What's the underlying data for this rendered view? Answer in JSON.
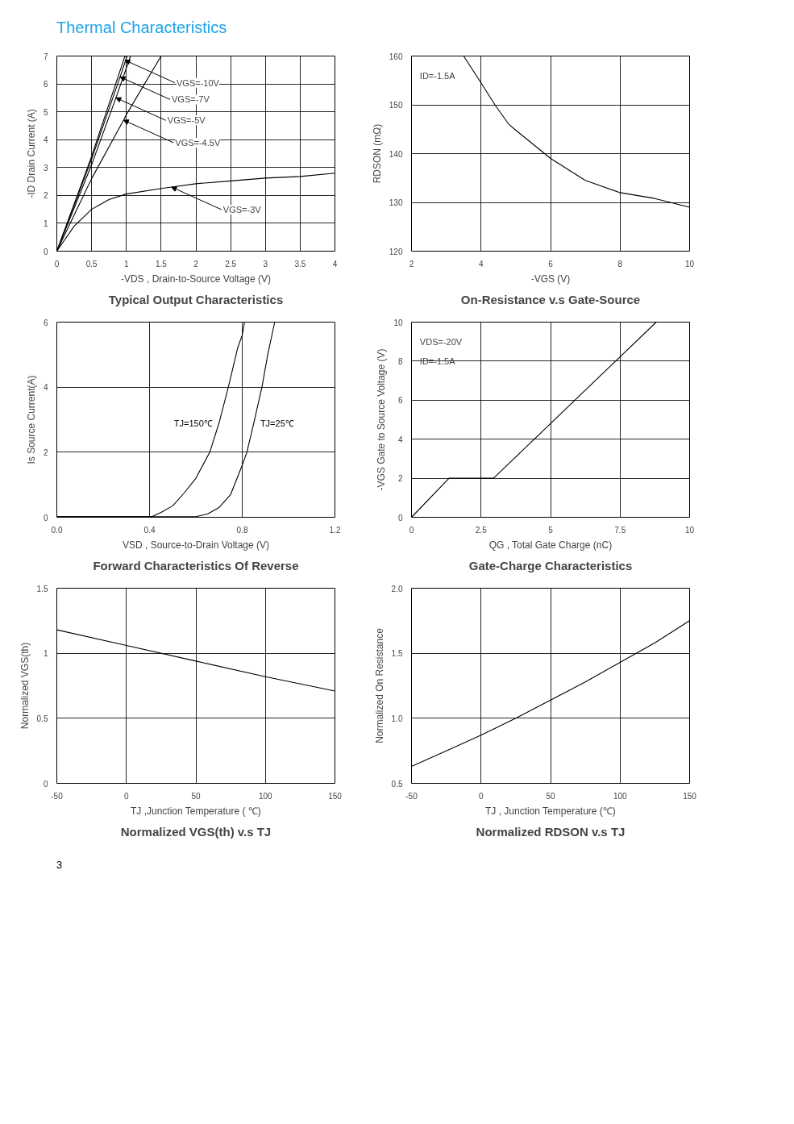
{
  "chart_data": [
    {
      "type": "line",
      "title": "Typical Output Characteristics",
      "xlabel": "-VDS , Drain-to-Source Voltage (V)",
      "ylabel": "-ID Drain Current (A)",
      "xlim": [
        0,
        4
      ],
      "ylim": [
        0,
        7
      ],
      "xticks": [
        0,
        0.5,
        1,
        1.5,
        2,
        2.5,
        3,
        3.5,
        4
      ],
      "yticks": [
        0,
        1,
        2,
        3,
        4,
        5,
        6,
        7
      ],
      "grid": true,
      "marker": "none",
      "legend": false,
      "series": [
        {
          "color": "#000000",
          "x": [
            0,
            0.5,
            0.96,
            0.98
          ],
          "values": [
            0,
            3.4,
            6.85,
            7
          ]
        },
        {
          "color": "#000000",
          "x": [
            0,
            0.5,
            0.91,
            1.01
          ],
          "values": [
            0,
            3.3,
            6.25,
            7
          ]
        },
        {
          "color": "#000000",
          "x": [
            0,
            0.5,
            0.85,
            1.06
          ],
          "values": [
            0,
            3.1,
            5.5,
            7
          ]
        },
        {
          "color": "#000000",
          "x": [
            0,
            0.5,
            0.96,
            1,
            1.5
          ],
          "values": [
            0,
            2.6,
            4.7,
            4.9,
            7
          ]
        },
        {
          "color": "#000000",
          "x": [
            0,
            0.25,
            0.5,
            0.75,
            1,
            1.5,
            1.65,
            2,
            2.5,
            3,
            3.5,
            4
          ],
          "values": [
            0,
            0.9,
            1.5,
            1.85,
            2.05,
            2.25,
            2.3,
            2.42,
            2.52,
            2.62,
            2.68,
            2.8
          ]
        }
      ],
      "annotations": [
        "Thermal Characteristics",
        {
          "text": "VGS=-10V",
          "x": 0.98,
          "y": 6.85
        },
        {
          "text": "VGS=-7V",
          "x": 0.91,
          "y": 6.25
        },
        {
          "text": "VGS=-5V",
          "x": 0.85,
          "y": 5.5
        },
        {
          "text": "VGS=-4.5V",
          "x": 0.96,
          "y": 4.7
        },
        {
          "text": "VGS=-3V",
          "x": 1.65,
          "y": 2.3
        }
      ]
    },
    {
      "type": "line",
      "title": "On-Resistance v.s Gate-Source",
      "xlabel": "-VGS (V)",
      "ylabel": "RDSON (mΩ)",
      "xlim": [
        2,
        10
      ],
      "ylim": [
        120,
        160
      ],
      "xticks": [
        2,
        4,
        6,
        8,
        10
      ],
      "yticks": [
        120,
        130,
        140,
        150,
        160
      ],
      "grid": true,
      "marker": "none",
      "legend": false,
      "series": [
        {
          "color": "#000000",
          "x": [
            3.5,
            4,
            4.4,
            4.8,
            5,
            6,
            7,
            8,
            9,
            10
          ],
          "values": [
            160,
            154.5,
            150,
            146,
            144.8,
            139,
            134.5,
            132,
            130.8,
            129
          ]
        }
      ],
      "annotations": [
        "ID=-1.5A"
      ]
    },
    {
      "type": "line",
      "title": "Forward Characteristics Of Reverse",
      "xlabel": "VSD , Source-to-Drain Voltage (V)",
      "ylabel": "Is Source Current(A)",
      "xlim": [
        0,
        1.2
      ],
      "ylim": [
        0,
        6
      ],
      "xticks": [
        {
          "value": 0,
          "label": "0.0"
        },
        0.4,
        0.8,
        1.2
      ],
      "yticks": [
        0,
        2,
        4,
        6
      ],
      "grid": true,
      "marker": "none",
      "legend": false,
      "series": [
        {
          "name": "TJ=150℃",
          "color": "#000000",
          "x": [
            0,
            0.41,
            0.45,
            0.5,
            0.55,
            0.6,
            0.66,
            0.7,
            0.74,
            0.78,
            0.8,
            0.81
          ],
          "values": [
            0.02,
            0.02,
            0.15,
            0.35,
            0.75,
            1.2,
            2.0,
            2.9,
            4.0,
            5.2,
            5.6,
            6
          ]
        },
        {
          "name": "TJ=25℃",
          "color": "#000000",
          "x": [
            0,
            0.6,
            0.65,
            0.7,
            0.75,
            0.8,
            0.82,
            0.85,
            0.885,
            0.91,
            0.94
          ],
          "values": [
            0.02,
            0.02,
            0.1,
            0.3,
            0.7,
            1.6,
            2.0,
            2.9,
            4.0,
            5.0,
            6.0
          ]
        }
      ]
    },
    {
      "type": "line",
      "title": "Gate-Charge Characteristics",
      "xlabel": "QG , Total Gate Charge (nC)",
      "ylabel": "-VGS Gate to Source Voltage (V)",
      "xlim": [
        0,
        10
      ],
      "ylim": [
        0,
        10
      ],
      "xticks": [
        0,
        2.5,
        5,
        7.5,
        10
      ],
      "yticks": [
        0,
        2,
        4,
        6,
        8,
        10
      ],
      "grid": true,
      "marker": "none",
      "legend": false,
      "series": [
        {
          "color": "#000000",
          "x": [
            0,
            1.35,
            2.95,
            8.8
          ],
          "values": [
            0,
            2,
            2,
            10
          ]
        }
      ],
      "annotations": [
        "VDS=-20V",
        "ID=-1.5A"
      ]
    },
    {
      "type": "line",
      "title": "Normalized VGS(th) v.s TJ",
      "xlabel": "TJ ,Junction Temperature ( ℃)",
      "ylabel": "Normalized VGS(th)",
      "xlim": [
        -50,
        150
      ],
      "ylim": [
        0,
        1.5
      ],
      "xticks": [
        -50,
        0,
        50,
        100,
        150
      ],
      "yticks": [
        0,
        0.5,
        1,
        1.5
      ],
      "grid": true,
      "marker": "none",
      "legend": false,
      "series": [
        {
          "color": "#000000",
          "x": [
            -50,
            0,
            50,
            100,
            150
          ],
          "values": [
            1.18,
            1.06,
            0.94,
            0.82,
            0.71
          ]
        }
      ]
    },
    {
      "type": "line",
      "title": "Normalized RDSON v.s TJ",
      "xlabel": "TJ , Junction Temperature (℃)",
      "ylabel": "Normalized On Resistance",
      "xlim": [
        -50,
        150
      ],
      "ylim": [
        0.5,
        2.0
      ],
      "xticks": [
        -50,
        0,
        50,
        100,
        150
      ],
      "yticks": [
        0.5,
        {
          "value": 1,
          "label": "1.0"
        },
        1.5,
        {
          "value": 2,
          "label": "2.0"
        }
      ],
      "grid": true,
      "marker": "none",
      "legend": false,
      "series": [
        {
          "color": "#000000",
          "x": [
            -50,
            -25,
            0,
            25,
            50,
            75,
            100,
            125,
            150
          ],
          "values": [
            0.63,
            0.75,
            0.87,
            1.0,
            1.14,
            1.28,
            1.43,
            1.58,
            1.75
          ]
        }
      ],
      "annotations": [
        "3"
      ]
    }
  ]
}
